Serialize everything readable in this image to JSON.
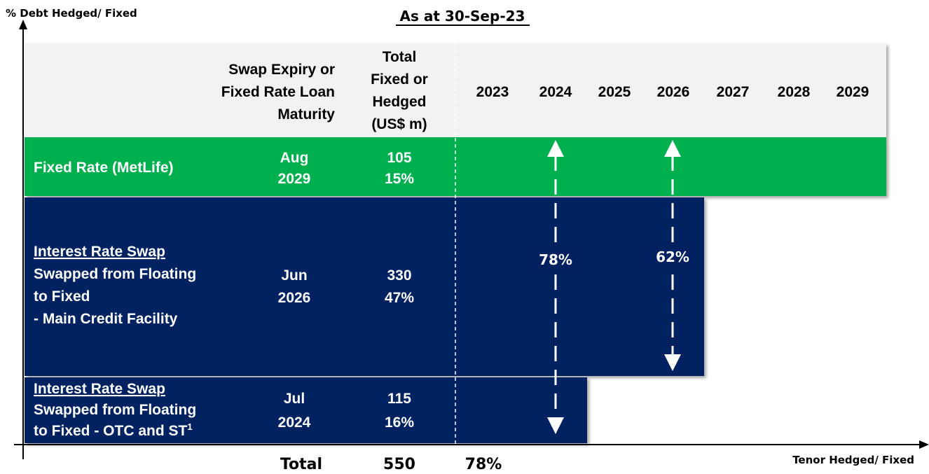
{
  "title": "As at 30-Sep-23",
  "y_axis_label": "% Debt Hedged/ Fixed",
  "x_axis_label": "Tenor Hedged/ Fixed",
  "header": {
    "label_col": [
      "Swap Expiry or",
      "Fixed Rate Loan",
      "Maturity"
    ],
    "total_col": [
      "Total",
      "Fixed or",
      "Hedged",
      "(US$ m)"
    ],
    "years": [
      "2023",
      "2024",
      "2025",
      "2026",
      "2027",
      "2028",
      "2029"
    ]
  },
  "rows": [
    {
      "title": "Fixed Rate (MetLife)",
      "maturity": [
        "Aug",
        "2029"
      ],
      "amount": "105",
      "percent": "15%"
    },
    {
      "title": "Interest Rate Swap",
      "description": [
        "Swapped from Floating",
        "to Fixed",
        "- Main Credit Facility"
      ],
      "maturity": [
        "Jun",
        "2026"
      ],
      "amount": "330",
      "percent": "47%"
    },
    {
      "title": "Interest Rate Swap",
      "description": [
        "Swapped from Floating",
        "to Fixed - OTC and ST"
      ],
      "footnote": "1",
      "maturity": [
        "Jul",
        "2024"
      ],
      "amount": "115",
      "percent": "16%"
    }
  ],
  "arrows": [
    {
      "label": "78%"
    },
    {
      "label": "62%"
    }
  ],
  "totals": {
    "label": "Total",
    "amount": "550",
    "percent": "78%"
  }
}
